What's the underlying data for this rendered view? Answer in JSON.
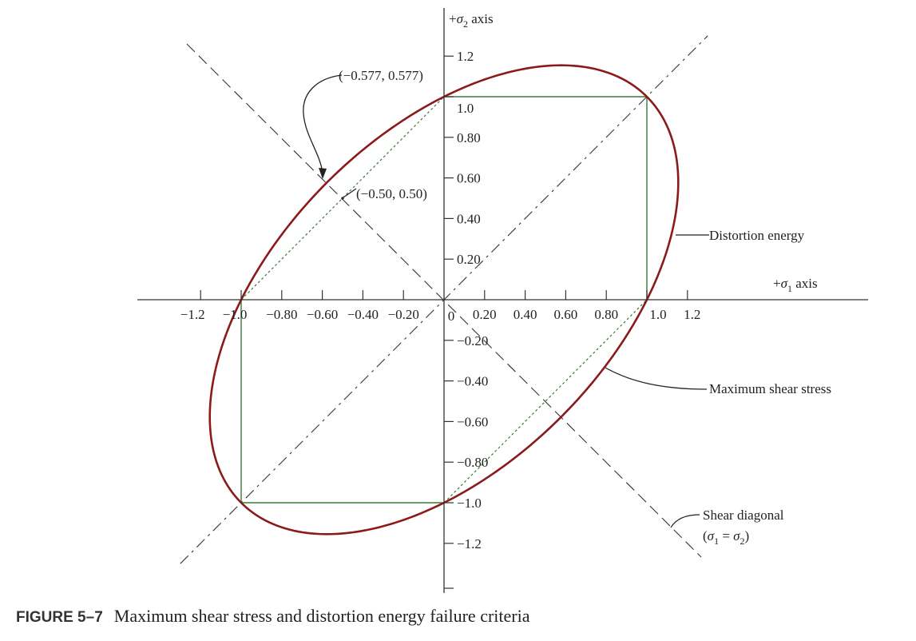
{
  "figure": {
    "label": "FIGURE 5–7",
    "caption": "Maximum shear stress and distortion energy failure criteria"
  },
  "axes": {
    "x_title": {
      "pre": "+",
      "sym": "σ",
      "sub": "1",
      "post": " axis"
    },
    "y_title": {
      "pre": "+",
      "sym": "σ",
      "sub": "2",
      "post": " axis"
    },
    "x_ticks": [
      {
        "v": -1.2,
        "label": "−1.2"
      },
      {
        "v": -1.0,
        "label": "−1.0"
      },
      {
        "v": -0.8,
        "label": "−0.80"
      },
      {
        "v": -0.6,
        "label": "−0.60"
      },
      {
        "v": -0.4,
        "label": "−0.40"
      },
      {
        "v": -0.2,
        "label": "−0.20"
      },
      {
        "v": 0.2,
        "label": "0.20"
      },
      {
        "v": 0.4,
        "label": "0.40"
      },
      {
        "v": 0.6,
        "label": "0.60"
      },
      {
        "v": 0.8,
        "label": "0.80"
      },
      {
        "v": 1.0,
        "label": "1.0"
      },
      {
        "v": 1.2,
        "label": "1.2"
      }
    ],
    "origin_label": "0",
    "y_ticks": [
      {
        "v": 1.2,
        "label": "1.2"
      },
      {
        "v": 1.0,
        "label": "1.0"
      },
      {
        "v": 0.8,
        "label": "0.80"
      },
      {
        "v": 0.6,
        "label": "0.60"
      },
      {
        "v": 0.4,
        "label": "0.40"
      },
      {
        "v": 0.2,
        "label": "0.20"
      },
      {
        "v": -0.2,
        "label": "−0.20"
      },
      {
        "v": -0.4,
        "label": "−0.40"
      },
      {
        "v": -0.6,
        "label": "−0.60"
      },
      {
        "v": -0.8,
        "label": "−0.80"
      },
      {
        "v": -1.0,
        "label": "−1.0"
      },
      {
        "v": -1.2,
        "label": "−1.2"
      }
    ],
    "x_range": [
      -1.2,
      1.2
    ],
    "y_range": [
      -1.4,
      1.4
    ]
  },
  "points": {
    "de_point": {
      "x": -0.577,
      "y": 0.577,
      "label": "(−0.577, 0.577)"
    },
    "mss_point": {
      "x": -0.5,
      "y": 0.5,
      "label": "(−0.50, 0.50)"
    }
  },
  "callouts": {
    "distortion_energy": "Distortion energy",
    "max_shear_stress": "Maximum shear stress",
    "shear_diagonal": "Shear diagonal",
    "shear_diagonal_eq": {
      "open": "(",
      "s1": "σ",
      "sub1": "1",
      "eq": " = ",
      "s2": "σ",
      "sub2": "2",
      "close": ")"
    }
  },
  "colors": {
    "ellipse": "#8b1a1a",
    "square": "#3a7a3a",
    "hexagon_diag": "#3a7a3a",
    "axes": "#333333"
  }
}
